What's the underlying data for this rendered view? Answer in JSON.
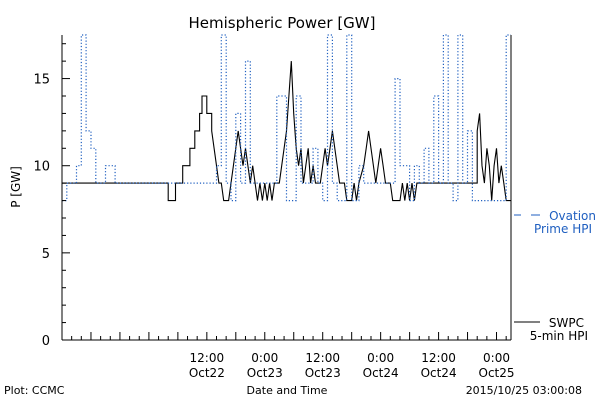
{
  "chart_data": {
    "type": "line",
    "title": "Hemispheric Power [GW]",
    "ylabel": "P [GW]",
    "xlabel": "Date and Time",
    "xlim": [
      "2015-10-21 06:00",
      "2015-10-25 03:00"
    ],
    "ylim": [
      0,
      17.5
    ],
    "y_ticks": [
      0,
      5,
      10,
      15
    ],
    "x_ticks": [
      {
        "x": "2015-10-22 12:00",
        "time": "12:00",
        "date": "Oct22"
      },
      {
        "x": "2015-10-23 00:00",
        "time": "0:00",
        "date": "Oct23"
      },
      {
        "x": "2015-10-23 12:00",
        "time": "12:00",
        "date": "Oct23"
      },
      {
        "x": "2015-10-24 00:00",
        "time": "0:00",
        "date": "Oct24"
      },
      {
        "x": "2015-10-24 12:00",
        "time": "12:00",
        "date": "Oct24"
      },
      {
        "x": "2015-10-25 00:00",
        "time": "0:00",
        "date": "Oct25"
      }
    ],
    "series": [
      {
        "name": "SWPC 5-min HPI",
        "color": "#000000",
        "style": "solid",
        "points": [
          [
            "2015-10-21 06:00",
            9
          ],
          [
            "2015-10-22 04:00",
            9
          ],
          [
            "2015-10-22 04:00",
            8
          ],
          [
            "2015-10-22 05:30",
            8
          ],
          [
            "2015-10-22 05:30",
            9
          ],
          [
            "2015-10-22 07:00",
            9
          ],
          [
            "2015-10-22 07:00",
            10
          ],
          [
            "2015-10-22 08:30",
            10
          ],
          [
            "2015-10-22 08:30",
            11
          ],
          [
            "2015-10-22 09:30",
            11
          ],
          [
            "2015-10-22 09:30",
            12
          ],
          [
            "2015-10-22 10:30",
            12
          ],
          [
            "2015-10-22 10:30",
            13
          ],
          [
            "2015-10-22 11:00",
            13
          ],
          [
            "2015-10-22 11:00",
            14
          ],
          [
            "2015-10-22 12:00",
            14
          ],
          [
            "2015-10-22 12:00",
            13
          ],
          [
            "2015-10-22 13:00",
            13
          ],
          [
            "2015-10-22 13:00",
            12
          ],
          [
            "2015-10-22 13:30",
            11
          ],
          [
            "2015-10-22 14:00",
            10
          ],
          [
            "2015-10-22 14:30",
            9
          ],
          [
            "2015-10-22 15:00",
            9
          ],
          [
            "2015-10-22 15:30",
            8
          ],
          [
            "2015-10-22 16:30",
            8
          ],
          [
            "2015-10-22 17:00",
            9
          ],
          [
            "2015-10-22 17:30",
            10
          ],
          [
            "2015-10-22 18:00",
            11
          ],
          [
            "2015-10-22 18:30",
            12
          ],
          [
            "2015-10-22 19:00",
            11
          ],
          [
            "2015-10-22 19:30",
            10
          ],
          [
            "2015-10-22 20:00",
            11
          ],
          [
            "2015-10-22 20:30",
            10
          ],
          [
            "2015-10-22 21:00",
            9
          ],
          [
            "2015-10-22 21:30",
            10
          ],
          [
            "2015-10-22 22:00",
            9
          ],
          [
            "2015-10-22 22:30",
            8
          ],
          [
            "2015-10-22 23:00",
            9
          ],
          [
            "2015-10-22 23:30",
            8
          ],
          [
            "2015-10-23 00:00",
            9
          ],
          [
            "2015-10-23 00:30",
            8
          ],
          [
            "2015-10-23 01:00",
            9
          ],
          [
            "2015-10-23 01:30",
            8
          ],
          [
            "2015-10-23 02:00",
            9
          ],
          [
            "2015-10-23 03:00",
            9
          ],
          [
            "2015-10-23 03:30",
            10
          ],
          [
            "2015-10-23 04:00",
            11
          ],
          [
            "2015-10-23 04:30",
            12
          ],
          [
            "2015-10-23 05:00",
            14
          ],
          [
            "2015-10-23 05:30",
            16
          ],
          [
            "2015-10-23 06:00",
            13
          ],
          [
            "2015-10-23 06:30",
            11
          ],
          [
            "2015-10-23 07:00",
            10
          ],
          [
            "2015-10-23 07:30",
            11
          ],
          [
            "2015-10-23 08:00",
            9
          ],
          [
            "2015-10-23 08:30",
            10
          ],
          [
            "2015-10-23 09:00",
            11
          ],
          [
            "2015-10-23 09:30",
            9
          ],
          [
            "2015-10-23 10:00",
            10
          ],
          [
            "2015-10-23 10:30",
            9
          ],
          [
            "2015-10-23 11:30",
            9
          ],
          [
            "2015-10-23 12:00",
            10
          ],
          [
            "2015-10-23 12:30",
            11
          ],
          [
            "2015-10-23 13:00",
            10
          ],
          [
            "2015-10-23 13:30",
            11
          ],
          [
            "2015-10-23 14:00",
            12
          ],
          [
            "2015-10-23 14:30",
            11
          ],
          [
            "2015-10-23 15:00",
            10
          ],
          [
            "2015-10-23 15:30",
            9
          ],
          [
            "2015-10-23 16:30",
            9
          ],
          [
            "2015-10-23 17:00",
            8
          ],
          [
            "2015-10-23 18:00",
            8
          ],
          [
            "2015-10-23 18:30",
            9
          ],
          [
            "2015-10-23 19:00",
            8
          ],
          [
            "2015-10-23 19:30",
            9
          ],
          [
            "2015-10-23 20:30",
            10
          ],
          [
            "2015-10-23 21:00",
            11
          ],
          [
            "2015-10-23 21:30",
            12
          ],
          [
            "2015-10-23 22:00",
            11
          ],
          [
            "2015-10-23 22:30",
            10
          ],
          [
            "2015-10-23 23:00",
            9
          ],
          [
            "2015-10-23 23:30",
            10
          ],
          [
            "2015-10-24 00:00",
            11
          ],
          [
            "2015-10-24 00:30",
            10
          ],
          [
            "2015-10-24 01:00",
            9
          ],
          [
            "2015-10-24 02:00",
            9
          ],
          [
            "2015-10-24 02:30",
            8
          ],
          [
            "2015-10-24 04:00",
            8
          ],
          [
            "2015-10-24 04:30",
            9
          ],
          [
            "2015-10-24 05:00",
            8
          ],
          [
            "2015-10-24 05:30",
            9
          ],
          [
            "2015-10-24 06:00",
            8
          ],
          [
            "2015-10-24 06:30",
            9
          ],
          [
            "2015-10-24 07:00",
            8
          ],
          [
            "2015-10-24 07:30",
            9
          ],
          [
            "2015-10-24 20:00",
            9
          ],
          [
            "2015-10-24 20:00",
            12
          ],
          [
            "2015-10-24 20:30",
            13
          ],
          [
            "2015-10-24 21:00",
            10
          ],
          [
            "2015-10-24 21:30",
            9
          ],
          [
            "2015-10-24 22:00",
            11
          ],
          [
            "2015-10-24 22:30",
            10
          ],
          [
            "2015-10-24 23:00",
            8
          ],
          [
            "2015-10-24 23:30",
            10
          ],
          [
            "2015-10-25 00:00",
            11
          ],
          [
            "2015-10-25 00:30",
            9
          ],
          [
            "2015-10-25 01:00",
            10
          ],
          [
            "2015-10-25 01:30",
            9
          ],
          [
            "2015-10-25 02:00",
            8
          ],
          [
            "2015-10-25 03:00",
            8
          ]
        ]
      },
      {
        "name": "Ovation Prime HPI",
        "color": "#1f5fc0",
        "style": "dotted",
        "points": [
          [
            "2015-10-21 06:00",
            8
          ],
          [
            "2015-10-21 07:00",
            8
          ],
          [
            "2015-10-21 07:00",
            9
          ],
          [
            "2015-10-21 09:00",
            9
          ],
          [
            "2015-10-21 09:00",
            10
          ],
          [
            "2015-10-21 10:00",
            10
          ],
          [
            "2015-10-21 10:00",
            17.5
          ],
          [
            "2015-10-21 11:00",
            17.5
          ],
          [
            "2015-10-21 11:00",
            12
          ],
          [
            "2015-10-21 12:00",
            12
          ],
          [
            "2015-10-21 12:00",
            11
          ],
          [
            "2015-10-21 13:00",
            11
          ],
          [
            "2015-10-21 13:00",
            9
          ],
          [
            "2015-10-21 15:00",
            9
          ],
          [
            "2015-10-21 15:00",
            10
          ],
          [
            "2015-10-21 17:00",
            10
          ],
          [
            "2015-10-21 17:00",
            9
          ],
          [
            "2015-10-22 14:00",
            9
          ],
          [
            "2015-10-22 14:00",
            10
          ],
          [
            "2015-10-22 15:00",
            10
          ],
          [
            "2015-10-22 15:00",
            17.5
          ],
          [
            "2015-10-22 16:00",
            17.5
          ],
          [
            "2015-10-22 16:00",
            9
          ],
          [
            "2015-10-22 17:00",
            9
          ],
          [
            "2015-10-22 17:00",
            8
          ],
          [
            "2015-10-22 18:00",
            8
          ],
          [
            "2015-10-22 18:00",
            13
          ],
          [
            "2015-10-22 19:00",
            13
          ],
          [
            "2015-10-22 19:00",
            9
          ],
          [
            "2015-10-22 20:00",
            9
          ],
          [
            "2015-10-22 20:00",
            16
          ],
          [
            "2015-10-22 21:00",
            16
          ],
          [
            "2015-10-22 21:00",
            9
          ],
          [
            "2015-10-23 02:30",
            9
          ],
          [
            "2015-10-23 02:30",
            14
          ],
          [
            "2015-10-23 04:30",
            14
          ],
          [
            "2015-10-23 04:30",
            8
          ],
          [
            "2015-10-23 06:30",
            8
          ],
          [
            "2015-10-23 06:30",
            14
          ],
          [
            "2015-10-23 07:30",
            14
          ],
          [
            "2015-10-23 07:30",
            9
          ],
          [
            "2015-10-23 10:00",
            9
          ],
          [
            "2015-10-23 10:00",
            11
          ],
          [
            "2015-10-23 11:00",
            11
          ],
          [
            "2015-10-23 11:00",
            9
          ],
          [
            "2015-10-23 12:00",
            9
          ],
          [
            "2015-10-23 12:00",
            8
          ],
          [
            "2015-10-23 13:00",
            8
          ],
          [
            "2015-10-23 13:00",
            17.5
          ],
          [
            "2015-10-23 14:00",
            17.5
          ],
          [
            "2015-10-23 14:00",
            9
          ],
          [
            "2015-10-23 15:00",
            9
          ],
          [
            "2015-10-23 15:00",
            8
          ],
          [
            "2015-10-23 17:00",
            8
          ],
          [
            "2015-10-23 17:00",
            17.5
          ],
          [
            "2015-10-23 18:00",
            17.5
          ],
          [
            "2015-10-23 18:00",
            8
          ],
          [
            "2015-10-23 19:30",
            8
          ],
          [
            "2015-10-23 19:30",
            10
          ],
          [
            "2015-10-23 20:30",
            10
          ],
          [
            "2015-10-23 20:30",
            9
          ],
          [
            "2015-10-24 03:00",
            9
          ],
          [
            "2015-10-24 03:00",
            15
          ],
          [
            "2015-10-24 04:00",
            15
          ],
          [
            "2015-10-24 04:00",
            10
          ],
          [
            "2015-10-24 06:00",
            10
          ],
          [
            "2015-10-24 06:00",
            8
          ],
          [
            "2015-10-24 07:00",
            8
          ],
          [
            "2015-10-24 07:00",
            10
          ],
          [
            "2015-10-24 08:00",
            10
          ],
          [
            "2015-10-24 08:00",
            9
          ],
          [
            "2015-10-24 09:00",
            9
          ],
          [
            "2015-10-24 09:00",
            11
          ],
          [
            "2015-10-24 10:00",
            11
          ],
          [
            "2015-10-24 10:00",
            9
          ],
          [
            "2015-10-24 11:00",
            9
          ],
          [
            "2015-10-24 11:00",
            14
          ],
          [
            "2015-10-24 12:00",
            14
          ],
          [
            "2015-10-24 12:00",
            9
          ],
          [
            "2015-10-24 13:00",
            9
          ],
          [
            "2015-10-24 13:00",
            17.5
          ],
          [
            "2015-10-24 14:00",
            17.5
          ],
          [
            "2015-10-24 14:00",
            9
          ],
          [
            "2015-10-24 15:00",
            9
          ],
          [
            "2015-10-24 15:00",
            8
          ],
          [
            "2015-10-24 16:00",
            8
          ],
          [
            "2015-10-24 16:00",
            17.5
          ],
          [
            "2015-10-24 17:00",
            17.5
          ],
          [
            "2015-10-24 17:00",
            9
          ],
          [
            "2015-10-24 18:00",
            9
          ],
          [
            "2015-10-24 18:00",
            12
          ],
          [
            "2015-10-24 19:00",
            12
          ],
          [
            "2015-10-24 19:00",
            8
          ],
          [
            "2015-10-25 02:00",
            8
          ],
          [
            "2015-10-25 02:00",
            17.5
          ],
          [
            "2015-10-25 03:00",
            17.5
          ]
        ]
      }
    ],
    "legend": [
      {
        "lines": [
          "SWPC",
          "5-min HPI"
        ],
        "color": "#000000"
      },
      {
        "lines": [
          "Ovation",
          "Prime HPI"
        ],
        "color": "#1f5fc0"
      }
    ]
  },
  "footer": {
    "plot_credit": "Plot: CCMC",
    "generated": "2015/10/25 03:00:08"
  }
}
